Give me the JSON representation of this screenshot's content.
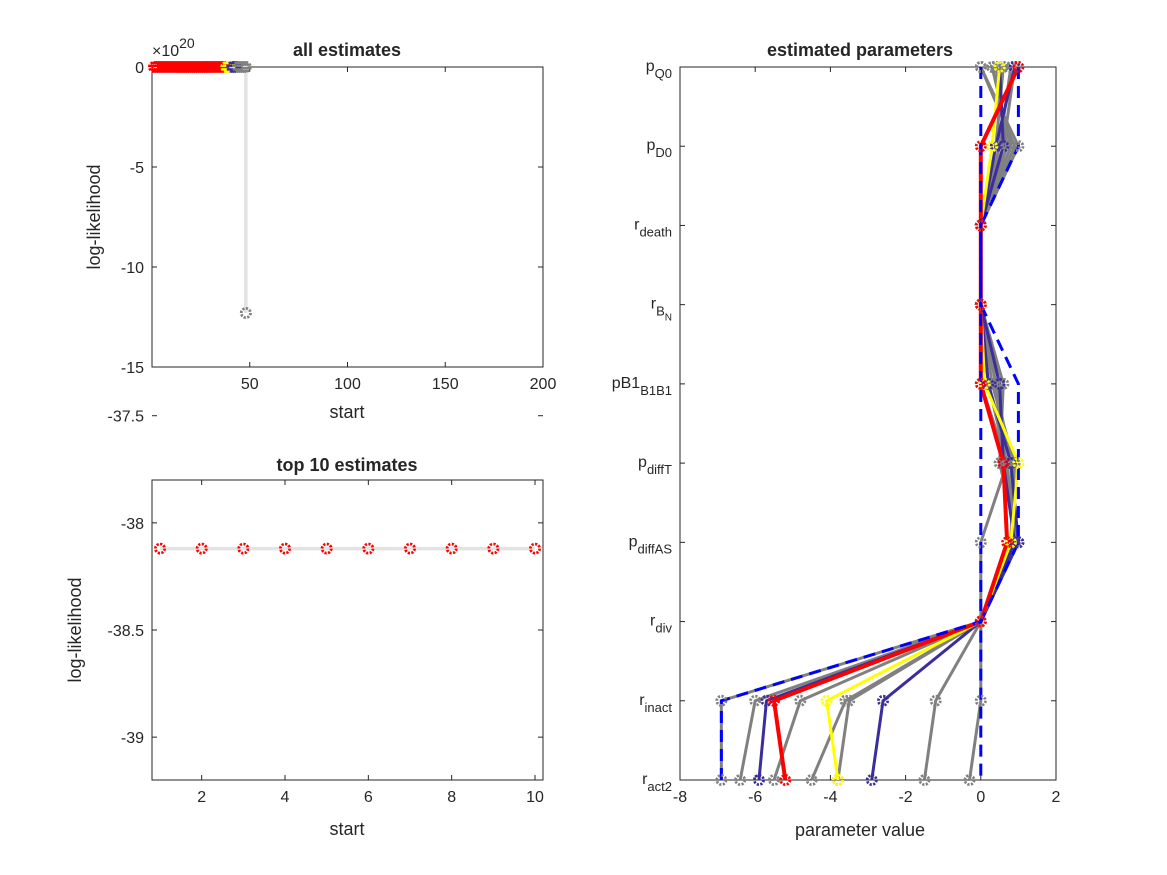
{
  "chart_data": [
    {
      "type": "scatter",
      "title": "all estimates",
      "xlabel": "start",
      "ylabel": "log-likelihood",
      "exponent_label": "×10",
      "exponent_power": "20",
      "xlim": [
        0,
        200
      ],
      "ylim": [
        -15,
        0
      ],
      "xticks": [
        50,
        100,
        150,
        200
      ],
      "yticks": [
        0,
        -5,
        -10,
        -15
      ],
      "xtick_labels": [
        "50",
        "100",
        "150",
        "200"
      ],
      "ytick_labels": [
        "0",
        "-5",
        "-10",
        "-15"
      ],
      "grid": false,
      "series": [
        {
          "color": "#ff0000",
          "x_start": 1,
          "x_end": 37,
          "y": 0
        },
        {
          "color": "#ffff00",
          "x_start": 38,
          "x_end": 40,
          "y": 0
        },
        {
          "color": "#3b2d9b",
          "x_start": 41,
          "x_end": 43,
          "y": 0
        },
        {
          "color": "#808080",
          "x_start": 44,
          "x_end": 48,
          "y": 0
        },
        {
          "color": "#808080",
          "x": [
            48
          ],
          "y": [
            -12.3
          ]
        }
      ]
    },
    {
      "type": "scatter",
      "title": "top 10 estimates",
      "xlabel": "start",
      "ylabel": "log-likelihood",
      "xlim": [
        1,
        10
      ],
      "ylim": [
        -39.2,
        -37.8
      ],
      "xticks": [
        2,
        4,
        6,
        8,
        10
      ],
      "yticks": [
        -37.5,
        -38,
        -38.5,
        -39
      ],
      "xtick_labels": [
        "2",
        "4",
        "6",
        "8",
        "10"
      ],
      "ytick_labels": [
        "-37.5",
        "-38",
        "-38.5",
        "-39"
      ],
      "grid": false,
      "series": [
        {
          "color": "#ff0000",
          "x": [
            1,
            2,
            3,
            4,
            5,
            6,
            7,
            8,
            9,
            10
          ],
          "y": [
            -38.12,
            -38.12,
            -38.12,
            -38.12,
            -38.12,
            -38.12,
            -38.12,
            -38.12,
            -38.12,
            -38.12
          ]
        }
      ]
    },
    {
      "type": "line",
      "title": "estimated parameters",
      "xlabel": "parameter value",
      "xlim": [
        -8,
        2
      ],
      "xticks": [
        -8,
        -6,
        -4,
        -2,
        0,
        2
      ],
      "xtick_labels": [
        "-8",
        "-6",
        "-4",
        "-2",
        "0",
        "2"
      ],
      "categories": [
        {
          "base": "p",
          "sub": "Q0"
        },
        {
          "base": "p",
          "sub": "D0"
        },
        {
          "base": "r",
          "sub": "death"
        },
        {
          "base": "r",
          "sub": "B",
          "subsub": "N"
        },
        {
          "base": "pB1",
          "sub": "B1B1"
        },
        {
          "base": "p",
          "sub": "diffT"
        },
        {
          "base": "p",
          "sub": "diffAS"
        },
        {
          "base": "r",
          "sub": "div"
        },
        {
          "base": "r",
          "sub": "inact"
        },
        {
          "base": "r",
          "sub": "act2"
        }
      ],
      "bounds": {
        "color": "#0000ff",
        "style": "dashed",
        "lower": [
          0,
          0,
          0,
          0,
          0,
          0,
          0,
          0,
          -6.9,
          -6.9
        ],
        "upper": [
          1,
          1,
          0,
          0,
          1,
          1,
          1,
          0,
          0,
          0
        ]
      },
      "series": [
        {
          "color": "#808080",
          "values": [
            0.0,
            1.0,
            0.0,
            0.0,
            0.2,
            0.7,
            0.0,
            0.0,
            -6.0,
            -6.4
          ]
        },
        {
          "color": "#808080",
          "values": [
            0.3,
            0.8,
            0.0,
            0.0,
            0.4,
            0.8,
            0.9,
            0.0,
            -4.8,
            -5.5
          ]
        },
        {
          "color": "#808080",
          "values": [
            0.6,
            0.4,
            0.0,
            0.0,
            0.5,
            0.6,
            1.0,
            0.0,
            -3.5,
            -3.8
          ]
        },
        {
          "color": "#808080",
          "values": [
            0.9,
            0.6,
            0.0,
            0.0,
            0.3,
            0.9,
            0.8,
            0.0,
            -1.2,
            -1.5
          ]
        },
        {
          "color": "#808080",
          "values": [
            0.0,
            0.9,
            0.0,
            0.0,
            0.6,
            0.5,
            1.0,
            0.0,
            0.0,
            -0.3
          ]
        },
        {
          "color": "#808080",
          "values": [
            0.4,
            0.7,
            0.0,
            0.0,
            0.0,
            0.7,
            0.9,
            0.0,
            -6.9,
            -6.9
          ]
        },
        {
          "color": "#808080",
          "values": [
            0.8,
            0.5,
            0.0,
            0.0,
            0.4,
            0.6,
            1.0,
            0.0,
            -3.6,
            -4.5
          ]
        },
        {
          "color": "#3b2d9b",
          "values": [
            0.5,
            0.6,
            0.0,
            0.0,
            0.5,
            0.6,
            0.9,
            0.0,
            -5.7,
            -5.9
          ]
        },
        {
          "color": "#3b2d9b",
          "values": [
            0.9,
            0.4,
            0.0,
            0.0,
            0.2,
            0.8,
            1.0,
            0.0,
            -2.6,
            -2.9
          ]
        },
        {
          "color": "#ffff00",
          "values": [
            0.5,
            0.3,
            0.0,
            0.0,
            0.1,
            1.0,
            0.8,
            0.0,
            -4.1,
            -3.8
          ]
        },
        {
          "color": "#ff0000",
          "values": [
            1.0,
            0.0,
            0.0,
            0.0,
            0.0,
            0.6,
            0.7,
            0.0,
            -5.5,
            -5.2
          ]
        }
      ]
    }
  ]
}
